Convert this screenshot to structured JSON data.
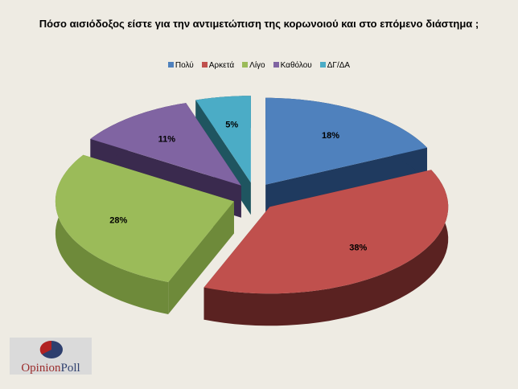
{
  "chart_data": {
    "type": "pie",
    "title": "Πόσο αισιόδοξος είστε για την αντιμετώπιση της κορωνοιού και στο επόμενο  διάστημα ;",
    "legend_position": "top",
    "three_d": true,
    "exploded": true,
    "categories": [
      "Πολύ",
      "Αρκετά",
      "Λίγο",
      "Καθόλου",
      "ΔΓ/ΔΑ"
    ],
    "values": [
      18,
      38,
      28,
      11,
      5
    ],
    "labels": [
      "18%",
      "38%",
      "28%",
      "11%",
      "5%"
    ],
    "colors": [
      "#4F81BD",
      "#C0504D",
      "#9BBB59",
      "#8064A2",
      "#4BACC6"
    ],
    "side_colors": [
      "#1F3A5F",
      "#5A2221",
      "#6E8A3A",
      "#3A2A4E",
      "#1F5560"
    ]
  },
  "logo": {
    "text": "OpinionPoll"
  },
  "background": "#EEEBE3"
}
